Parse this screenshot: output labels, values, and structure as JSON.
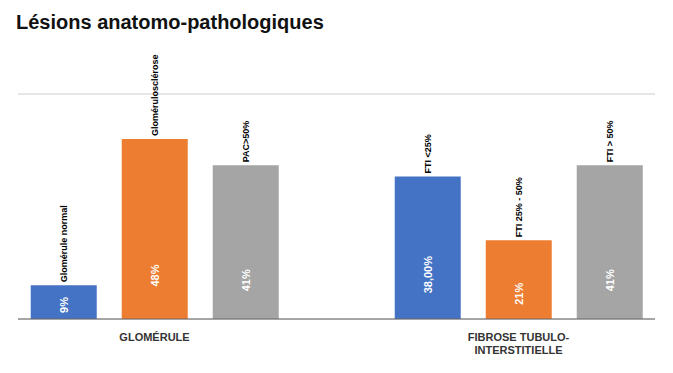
{
  "chart_data": {
    "type": "bar",
    "title": "Lésions anatomo-pathologiques",
    "categories": [
      null,
      "GLOMÉRULE",
      null,
      null,
      null,
      "FIBROSE TUBULO-\nINTERSTITIELLE",
      null
    ],
    "values": [
      9,
      48,
      41,
      null,
      38,
      21,
      41
    ],
    "value_labels": [
      "9%",
      "48%",
      "41%",
      null,
      "38,00%",
      "21%",
      "41%"
    ],
    "annotations": [
      "Glomérule normal",
      "Glomérulosclérose",
      "PAC>50%",
      null,
      "FTI <25%",
      "FTI  25% - 50%",
      "FTI > 50%"
    ],
    "colors": [
      "#4472C4",
      "#ED7D31",
      "#A5A5A5",
      null,
      "#4472C4",
      "#ED7D31",
      "#A5A5A5"
    ],
    "ylim": [
      0,
      60
    ],
    "yticks": [
      0,
      10,
      20,
      30,
      40,
      50,
      60
    ],
    "grid": true,
    "data_labels": true,
    "tick_labels": "x"
  }
}
